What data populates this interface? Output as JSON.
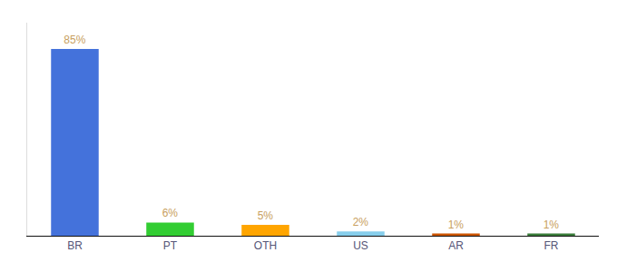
{
  "chart_data": {
    "type": "bar",
    "categories": [
      "BR",
      "PT",
      "OTH",
      "US",
      "AR",
      "FR"
    ],
    "values": [
      85,
      6,
      5,
      2,
      1,
      1
    ],
    "value_labels": [
      "85%",
      "6%",
      "5%",
      "2%",
      "1%",
      "1%"
    ],
    "colors": [
      "#4472db",
      "#32cd32",
      "#ffa500",
      "#87ceeb",
      "#cc5500",
      "#3a7d3a"
    ],
    "ylim": [
      0,
      97
    ],
    "grid": false,
    "data_labels": true,
    "tick_labels": "x"
  }
}
